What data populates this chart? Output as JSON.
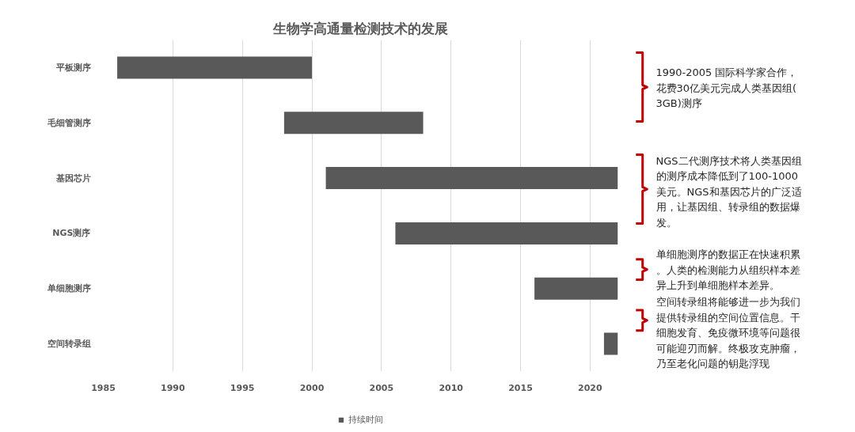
{
  "chart_data": {
    "type": "bar",
    "orientation": "horizontal",
    "title": "生物学高通量检测技术的发展",
    "categories": [
      "平板测序",
      "毛细管测序",
      "基因芯片",
      "NGS测序",
      "单细胞测序",
      "空间转录组"
    ],
    "series": [
      {
        "name": "持续时间",
        "color": "#595959",
        "base": [
          1986,
          1998,
          2001,
          2006,
          2016,
          2021
        ],
        "values": [
          14,
          10,
          21,
          16,
          6,
          1
        ]
      }
    ],
    "xlim": [
      1985,
      2022
    ],
    "xticks": [
      1985,
      1990,
      1995,
      2000,
      2005,
      2010,
      2015,
      2020
    ],
    "grid": "x",
    "legend": "bottom",
    "annotations": [
      "1990-2005 国际科学家合作，花费30亿美元完成人类基因组(3GB)测序",
      "NGS二代测序技术将人类基因组的测序成本降低到了100-1000美元。NGS和基因芯片的广泛适用，让基因组、转录组的数据爆发。",
      "单细胞测序的数据正在快速积累。人类的检测能力从组织样本差异上升到单细胞样本差异。",
      "空间转录组将能够进一步为我们提供转录组的空间位置信息。干细胞发育、免疫微环境等问题很可能迎刃而解。终极攻克肿瘤，乃至老化问题的钥匙浮现"
    ]
  }
}
